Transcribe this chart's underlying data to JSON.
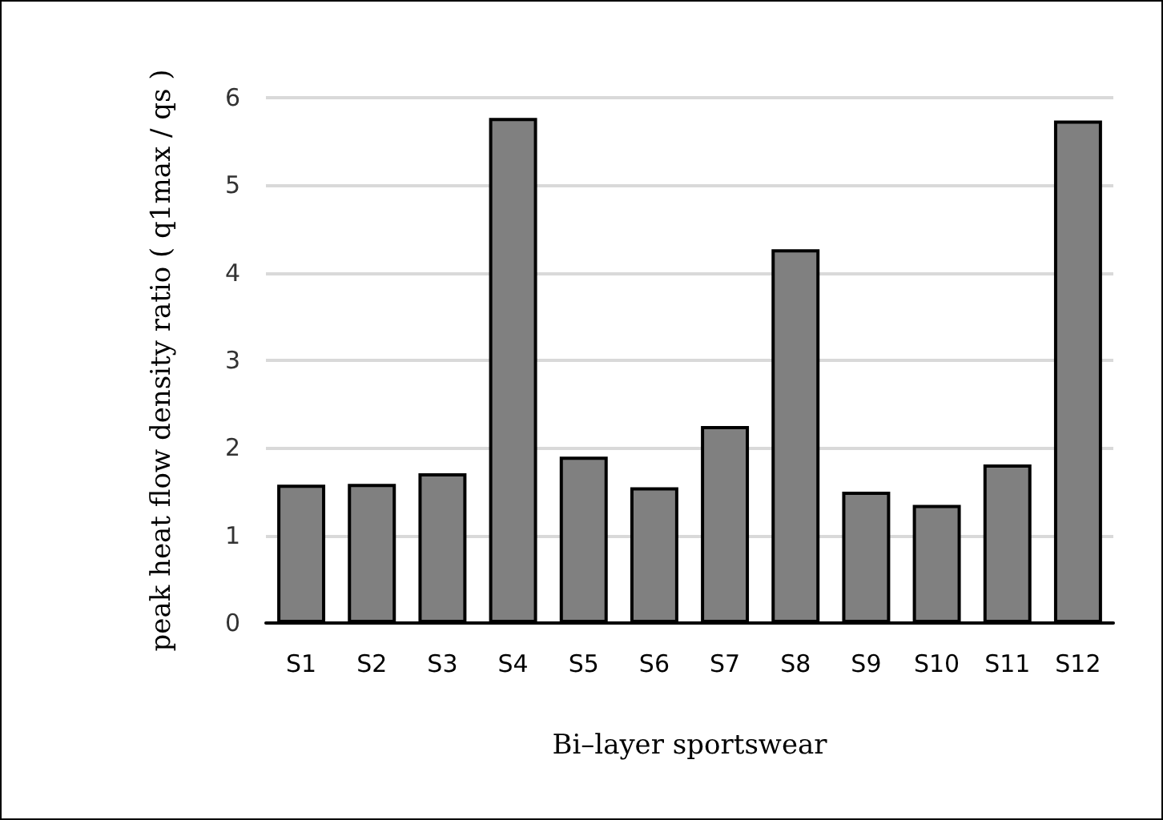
{
  "chart_data": {
    "type": "bar",
    "xlabel": "Bi–layer sportswear",
    "ylabel": "peak heat flow density ratio ( q1max / qs )",
    "categories": [
      "S1",
      "S2",
      "S3",
      "S4",
      "S5",
      "S6",
      "S7",
      "S8",
      "S9",
      "S10",
      "S11",
      "S12"
    ],
    "values": [
      1.58,
      1.59,
      1.71,
      5.77,
      1.9,
      1.55,
      2.25,
      4.27,
      1.5,
      1.35,
      1.81,
      5.74
    ],
    "color": "#808080",
    "ylim": [
      0,
      6
    ],
    "yticks": [
      0,
      1,
      2,
      3,
      4,
      5,
      6
    ],
    "grid": true
  }
}
